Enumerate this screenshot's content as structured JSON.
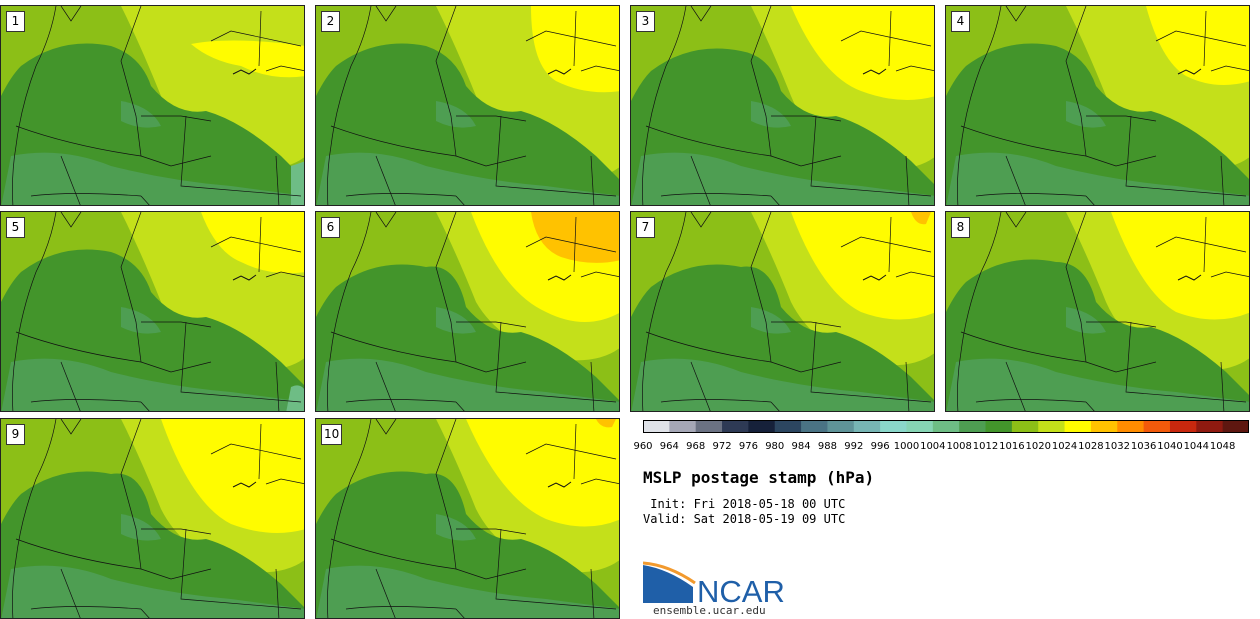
{
  "panels": [
    {
      "label": "1",
      "member": 1
    },
    {
      "label": "2",
      "member": 2
    },
    {
      "label": "3",
      "member": 3
    },
    {
      "label": "4",
      "member": 4
    },
    {
      "label": "5",
      "member": 5
    },
    {
      "label": "6",
      "member": 6
    },
    {
      "label": "7",
      "member": 7
    },
    {
      "label": "8",
      "member": 8
    },
    {
      "label": "9",
      "member": 9
    },
    {
      "label": "10",
      "member": 10
    }
  ],
  "colorbar": {
    "levels": [
      "960",
      "964",
      "968",
      "972",
      "976",
      "980",
      "984",
      "988",
      "992",
      "996",
      "1000",
      "1004",
      "1008",
      "1012",
      "1016",
      "1020",
      "1024",
      "1028",
      "1032",
      "1036",
      "1040",
      "1044",
      "1048"
    ],
    "colors": [
      "#dfe2e8",
      "#a5a7b6",
      "#6b7283",
      "#2e3a55",
      "#16213a",
      "#2c4660",
      "#4a7384",
      "#5f9398",
      "#77b5b4",
      "#8ad7ca",
      "#86d4b4",
      "#6ebd85",
      "#4e9e52",
      "#43952b",
      "#8cbf17",
      "#c4e01a",
      "#fffc00",
      "#ffc200",
      "#ff8c00",
      "#f25a0b",
      "#c8280e",
      "#8f1a10",
      "#5e1710"
    ]
  },
  "title": "MSLP postage stamp (hPa)",
  "init_text": " Init: Fri 2018-05-18 00 UTC",
  "valid_text": "Valid: Sat 2018-05-19 09 UTC",
  "logo_text": "NCAR",
  "website": "ensemble.ucar.edu"
}
